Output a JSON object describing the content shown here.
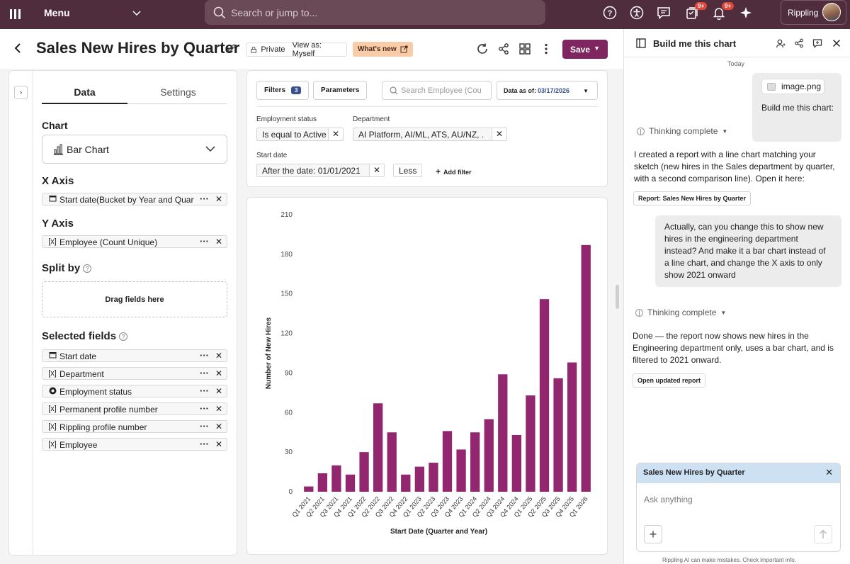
{
  "topbar": {
    "menu_label": "Menu",
    "search_placeholder": "Search or jump to...",
    "badge_tasks": "9+",
    "badge_notifications": "9+",
    "account_name": "Rippling"
  },
  "header": {
    "title": "Sales New Hires by Quarter",
    "privacy": "Private",
    "view_as": "View as: Myself",
    "whats_new": "What's new",
    "save": "Save"
  },
  "left": {
    "tabs": [
      "Data",
      "Settings"
    ],
    "chart_label": "Chart",
    "chart_type": "Bar Chart",
    "x_axis_label": "X Axis",
    "x_field": "Start date(Bucket by Year and Quarter)",
    "y_axis_label": "Y Axis",
    "y_field_icon": "[x]",
    "y_field": "Employee (Count Unique)",
    "split_label": "Split by",
    "drop_text": "Drag fields here",
    "selected_label": "Selected fields",
    "selected_fields": [
      {
        "icon": "calendar",
        "label": "Start date"
      },
      {
        "icon": "[x]",
        "label": "Department"
      },
      {
        "icon": "radio",
        "label": "Employment status"
      },
      {
        "icon": "[x]",
        "label": "Permanent profile number"
      },
      {
        "icon": "[x]",
        "label": "Rippling profile number"
      },
      {
        "icon": "[x]",
        "label": "Employee"
      }
    ]
  },
  "filters": {
    "filters_label": "Filters",
    "filters_count": "3",
    "parameters_label": "Parameters",
    "search_placeholder": "Search Employee (Cou",
    "data_as_of_label": "Data as of:",
    "data_as_of_value": "03/17/2026",
    "employment_status_label": "Employment status",
    "employment_status_value": "Is equal to Active",
    "department_label": "Department",
    "department_value": "AI Platform, AI/ML, ATS, AU/NZ, ...",
    "start_date_label": "Start date",
    "start_date_value": "After the date: 01/01/2021",
    "less_label": "Less",
    "add_filter_label": "Add filter"
  },
  "chart_data": {
    "type": "bar",
    "xlabel": "Start Date (Quarter and Year)",
    "ylabel": "Number of New Hires",
    "ylim": [
      0,
      210
    ],
    "yticks": [
      0,
      30,
      60,
      90,
      120,
      150,
      180,
      210
    ],
    "color": "#92276f",
    "categories": [
      "Q1 2021",
      "Q2 2021",
      "Q3 2021",
      "Q4 2021",
      "Q1 2022",
      "Q2 2022",
      "Q3 2022",
      "Q4 2022",
      "Q1 2023",
      "Q2 2023",
      "Q3 2023",
      "Q4 2023",
      "Q1 2024",
      "Q2 2024",
      "Q3 2024",
      "Q4 2024",
      "Q1 2025",
      "Q2 2025",
      "Q3 2025",
      "Q4 2025",
      "Q1 2026"
    ],
    "values": [
      4,
      14,
      20,
      13,
      30,
      67,
      45,
      13,
      19,
      22,
      46,
      32,
      45,
      55,
      89,
      43,
      73,
      146,
      86,
      98,
      187
    ]
  },
  "assistant": {
    "title": "Build me this chart",
    "today": "Today",
    "image_name": "image.png",
    "user_msg1": "Build me this chart:",
    "thinking1": "Thinking complete",
    "ai_msg1": "I created a report with a line chart matching your sketch (new hires in the Sales department by quarter, with a second comparison line). Open it here:",
    "link1": "Report: Sales New Hires by Quarter",
    "user_msg2": "Actually, can you change this to show new hires in the engineering department instead? And make it a bar chart instead of a line chart, and change the X axis to only show 2021 onward",
    "thinking2": "Thinking complete",
    "ai_msg2": "Done — the report now shows new hires in the Engineering department only, uses a bar chart, and is filtered to 2021 onward.",
    "link2": "Open updated report",
    "composer_context": "Sales New Hires by Quarter",
    "composer_placeholder": "Ask anything",
    "disclaimer": "Rippling AI can make mistakes. Check important info."
  }
}
